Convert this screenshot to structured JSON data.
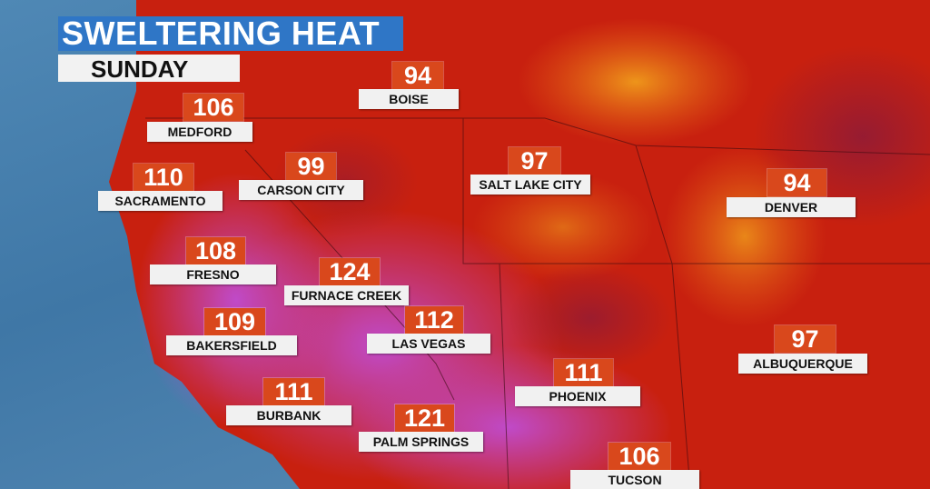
{
  "title": "SWELTERING HEAT",
  "subtitle": "SUNDAY",
  "colors": {
    "title_bg": "#2f76c6",
    "temp_bg": "#d9481c",
    "label_bg": "#f1f1f1",
    "ocean": "#4a82b0",
    "heat_red": "#c8200f",
    "heat_purple": "#b23ab8",
    "heat_yellow": "#f7b21d"
  },
  "cities": [
    {
      "name": "BOISE",
      "temp": "94"
    },
    {
      "name": "MEDFORD",
      "temp": "106"
    },
    {
      "name": "CARSON CITY",
      "temp": "99"
    },
    {
      "name": "SALT LAKE CITY",
      "temp": "97"
    },
    {
      "name": "SACRAMENTO",
      "temp": "110"
    },
    {
      "name": "DENVER",
      "temp": "94"
    },
    {
      "name": "FRESNO",
      "temp": "108"
    },
    {
      "name": "FURNACE CREEK",
      "temp": "124"
    },
    {
      "name": "LAS VEGAS",
      "temp": "112"
    },
    {
      "name": "BAKERSFIELD",
      "temp": "109"
    },
    {
      "name": "ALBUQUERQUE",
      "temp": "97"
    },
    {
      "name": "PHOENIX",
      "temp": "111"
    },
    {
      "name": "BURBANK",
      "temp": "111"
    },
    {
      "name": "PALM SPRINGS",
      "temp": "121"
    },
    {
      "name": "TUCSON",
      "temp": "106"
    }
  ]
}
